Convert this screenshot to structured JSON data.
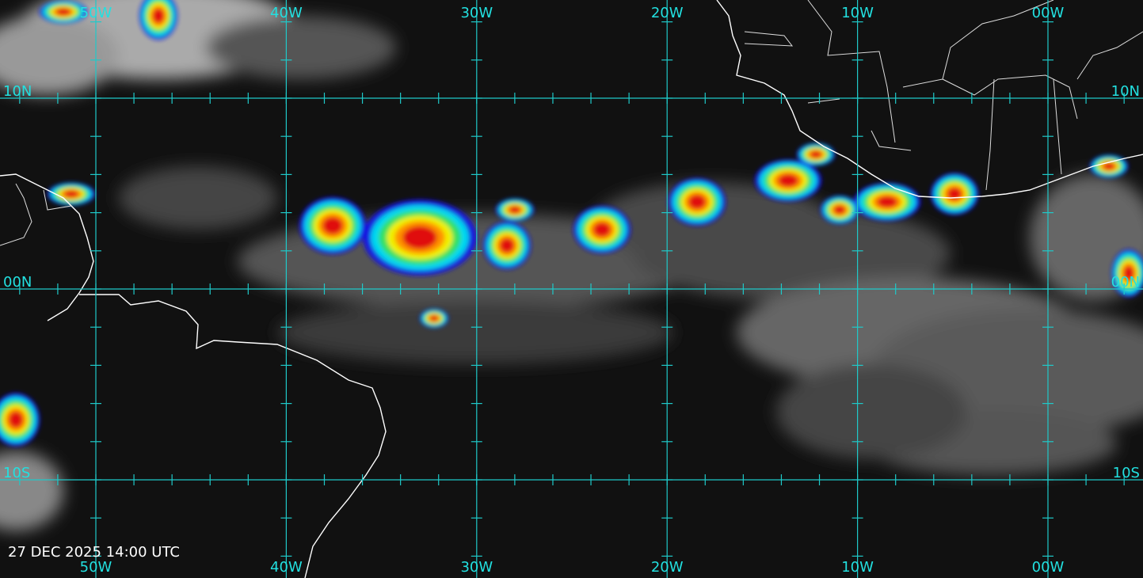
{
  "timestamp": "27 DEC 2025 14:00 UTC",
  "longitude_labels": [
    "50W",
    "40W",
    "30W",
    "20W",
    "10W",
    "00W"
  ],
  "latitude_labels": [
    "10N",
    "00N",
    "10S"
  ]
}
